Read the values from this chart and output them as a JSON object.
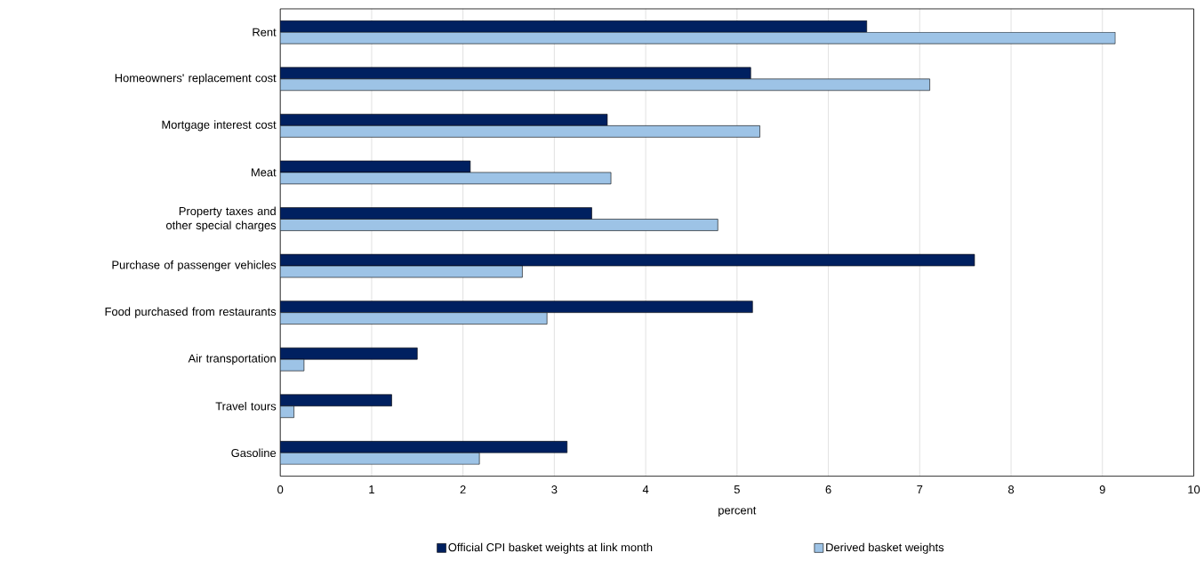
{
  "chart_data": {
    "type": "bar",
    "orientation": "horizontal",
    "xlabel": "percent",
    "categories": [
      "Rent",
      "Homeowners' replacement cost",
      "Mortgage interest cost",
      "Meat",
      "Property taxes and other special charges",
      "Purchase of passenger vehicles",
      "Food purchased from restaurants",
      "Air transportation",
      "Travel tours",
      "Gasoline"
    ],
    "series": [
      {
        "name": "Official CPI basket weights at link month",
        "color": "#002060",
        "values": [
          6.42,
          5.15,
          3.58,
          2.08,
          3.41,
          7.6,
          5.17,
          1.5,
          1.22,
          3.14
        ]
      },
      {
        "name": "Derived basket weights",
        "color": "#9dc3e6",
        "values": [
          9.14,
          7.11,
          5.25,
          3.62,
          4.79,
          2.65,
          2.92,
          0.26,
          0.15,
          2.18
        ]
      }
    ],
    "xlim": [
      0,
      10
    ],
    "xticks": [
      0,
      1,
      2,
      3,
      4,
      5,
      6,
      7,
      8,
      9,
      10
    ],
    "grid": "x",
    "legend": "bottom"
  }
}
